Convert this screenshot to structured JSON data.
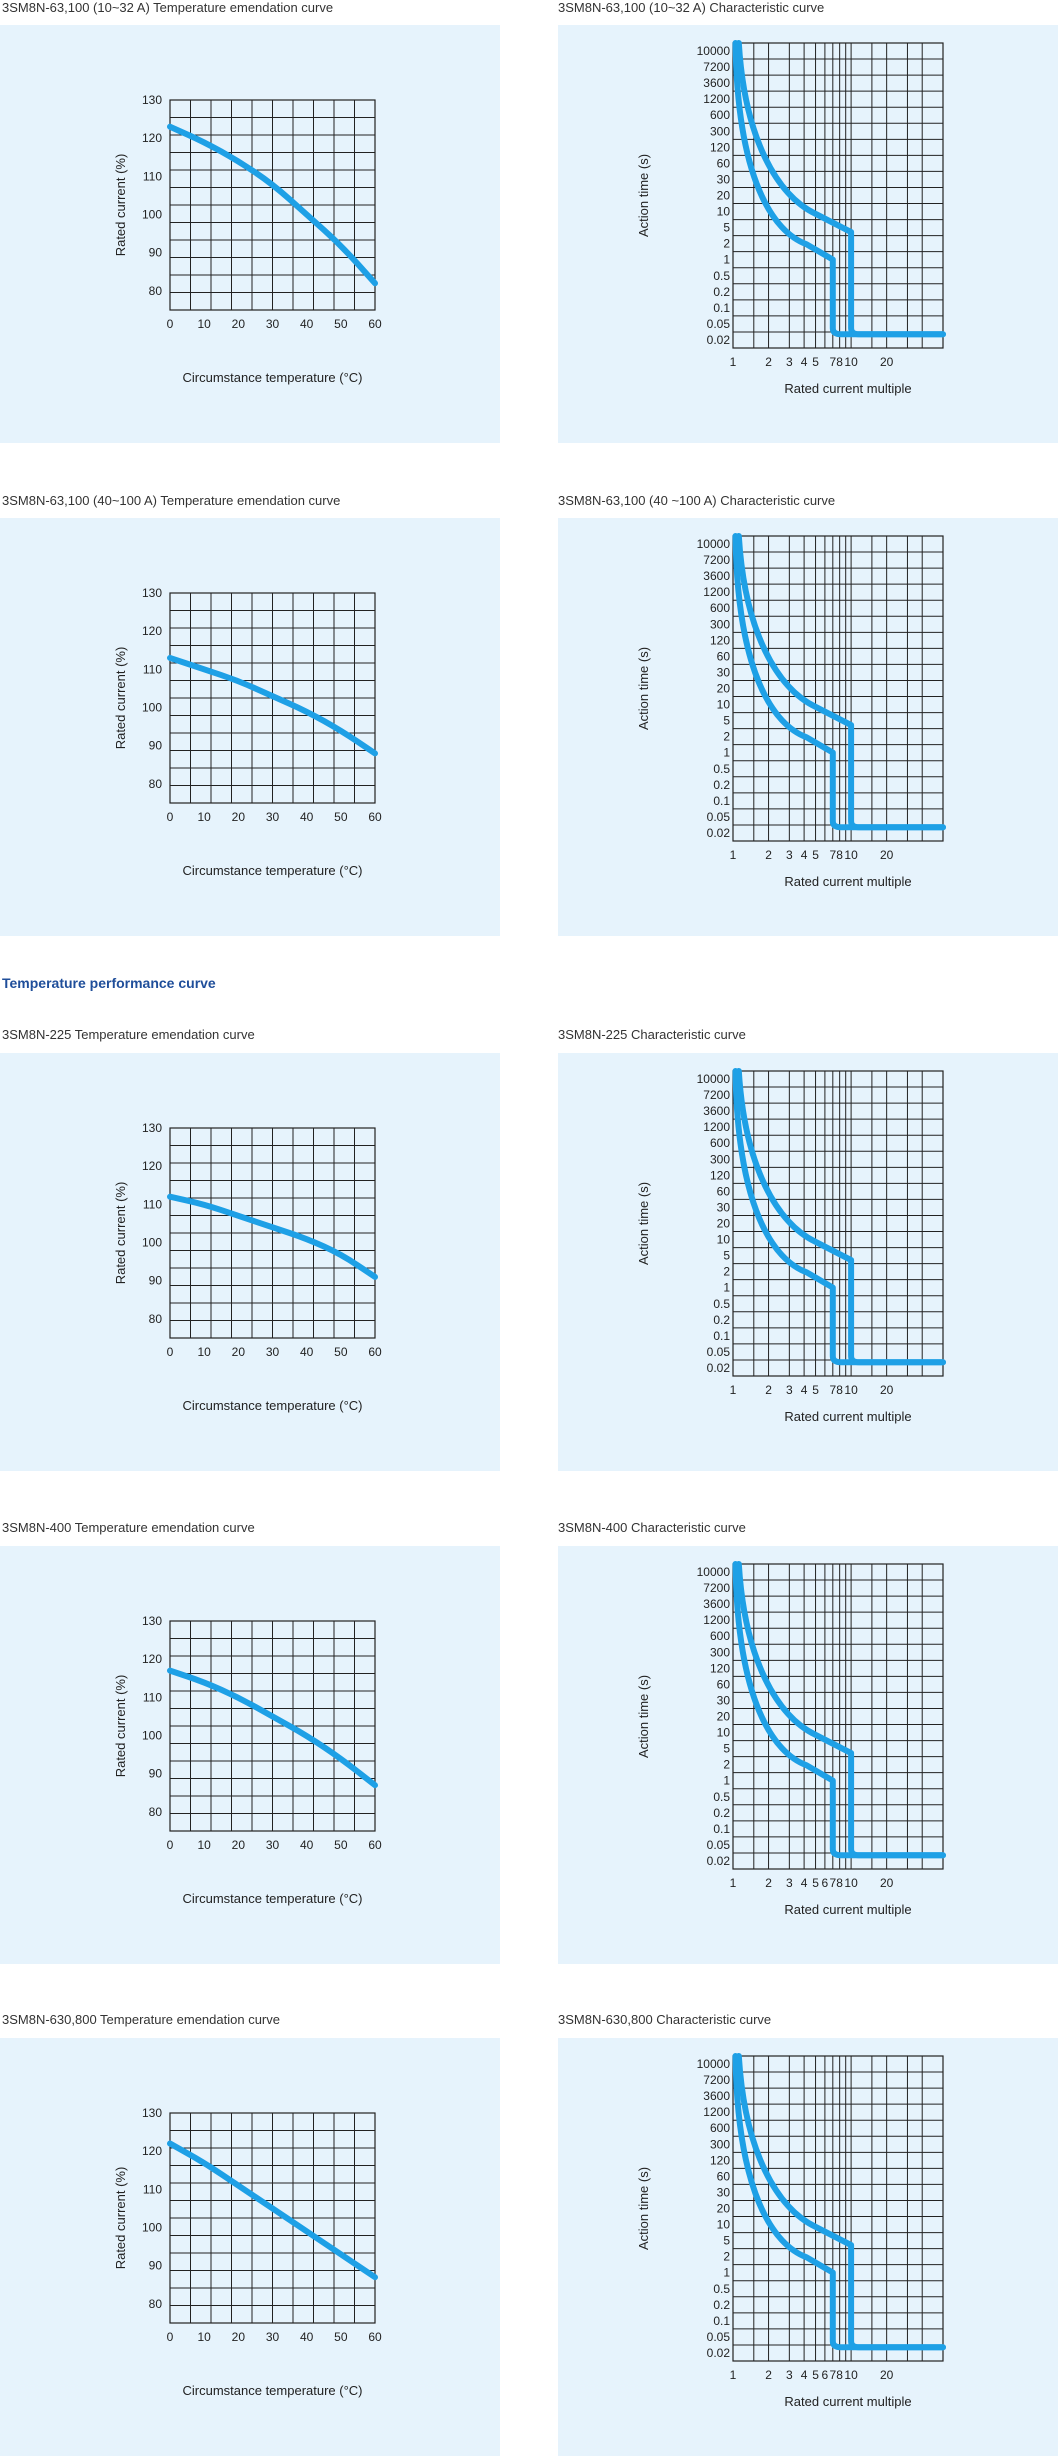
{
  "section_title": "Temperature performance curve",
  "charts": [
    {
      "id": "c1",
      "title": "3SM8N-63,100 (10~32 A) Temperature emendation curve",
      "type": "line",
      "kind": "temp",
      "xlabel": "Circumstance temperature (°C)",
      "ylabel": "Rated current (%)",
      "x_ticks": [
        "0",
        "10",
        "20",
        "30",
        "40",
        "50",
        "60"
      ],
      "y_ticks": [
        "80",
        "90",
        "100",
        "110",
        "120",
        "130"
      ],
      "xlim": [
        0,
        60
      ],
      "ylim": [
        75,
        130
      ],
      "series": [
        {
          "name": "Rated current",
          "x": [
            0,
            10,
            20,
            30,
            40,
            50,
            60
          ],
          "y": [
            123,
            119,
            114,
            108,
            100,
            92,
            82
          ]
        }
      ]
    },
    {
      "id": "c2",
      "title": "3SM8N-63,100 (10~32 A)  Characteristic curve",
      "type": "line",
      "kind": "trip",
      "xlabel": "Rated current multiple",
      "ylabel": "Action time (s)",
      "x_ticks": [
        "1",
        "2",
        "3",
        "4",
        "5",
        "7",
        "8",
        "10",
        "20"
      ],
      "y_ticks": [
        "10000",
        "7200",
        "3600",
        "1200",
        "600",
        "300",
        "120",
        "60",
        "30",
        "20",
        "10",
        "5",
        "2",
        "1",
        "0.5",
        "0.2",
        "0.1",
        "0.05",
        "0.02"
      ],
      "low_step": 7,
      "high_step": 10
    },
    {
      "id": "c3",
      "title": "3SM8N-63,100 (40~100 A) Temperature emendation curve",
      "type": "line",
      "kind": "temp",
      "xlabel": "Circumstance temperature (°C)",
      "ylabel": "Rated current (%)",
      "x_ticks": [
        "0",
        "10",
        "20",
        "30",
        "40",
        "50",
        "60"
      ],
      "y_ticks": [
        "80",
        "90",
        "100",
        "110",
        "120",
        "130"
      ],
      "xlim": [
        0,
        60
      ],
      "ylim": [
        75,
        130
      ],
      "series": [
        {
          "name": "Rated current",
          "x": [
            0,
            10,
            20,
            30,
            40,
            50,
            60
          ],
          "y": [
            113,
            110,
            107,
            103,
            99,
            94,
            88
          ]
        }
      ]
    },
    {
      "id": "c4",
      "title": "3SM8N-63,100 (40 ~100 A)  Characteristic curve",
      "type": "line",
      "kind": "trip",
      "xlabel": "Rated current multiple",
      "ylabel": "Action time (s)",
      "x_ticks": [
        "1",
        "2",
        "3",
        "4",
        "5",
        "7",
        "8",
        "10",
        "20"
      ],
      "y_ticks": [
        "10000",
        "7200",
        "3600",
        "1200",
        "600",
        "300",
        "120",
        "60",
        "30",
        "20",
        "10",
        "5",
        "2",
        "1",
        "0.5",
        "0.2",
        "0.1",
        "0.05",
        "0.02"
      ],
      "low_step": 7,
      "high_step": 10
    },
    {
      "id": "c5",
      "title": "3SM8N-225 Temperature emendation curve",
      "type": "line",
      "kind": "temp",
      "xlabel": "Circumstance temperature (°C)",
      "ylabel": "Rated current (%)",
      "x_ticks": [
        "0",
        "10",
        "20",
        "30",
        "40",
        "50",
        "60"
      ],
      "y_ticks": [
        "80",
        "90",
        "100",
        "110",
        "120",
        "130"
      ],
      "xlim": [
        0,
        60
      ],
      "ylim": [
        75,
        130
      ],
      "series": [
        {
          "name": "Rated current",
          "x": [
            0,
            10,
            20,
            30,
            40,
            50,
            60
          ],
          "y": [
            112,
            110,
            107,
            104,
            101,
            97,
            91
          ]
        }
      ]
    },
    {
      "id": "c6",
      "title": "3SM8N-225 Characteristic curve",
      "type": "line",
      "kind": "trip",
      "xlabel": "Rated current multiple",
      "ylabel": "Action time (s)",
      "x_ticks": [
        "1",
        "2",
        "3",
        "4",
        "5",
        "7",
        "8",
        "10",
        "20"
      ],
      "y_ticks": [
        "10000",
        "7200",
        "3600",
        "1200",
        "600",
        "300",
        "120",
        "60",
        "30",
        "20",
        "10",
        "5",
        "2",
        "1",
        "0.5",
        "0.2",
        "0.1",
        "0.05",
        "0.02"
      ],
      "low_step": 7,
      "high_step": 10
    },
    {
      "id": "c7",
      "title": "3SM8N-400 Temperature emendation curve",
      "type": "line",
      "kind": "temp",
      "xlabel": "Circumstance temperature (°C)",
      "ylabel": "Rated current (%)",
      "x_ticks": [
        "0",
        "10",
        "20",
        "30",
        "40",
        "50",
        "60"
      ],
      "y_ticks": [
        "80",
        "90",
        "100",
        "110",
        "120",
        "130"
      ],
      "xlim": [
        0,
        60
      ],
      "ylim": [
        75,
        130
      ],
      "series": [
        {
          "name": "Rated current",
          "x": [
            0,
            10,
            20,
            30,
            40,
            50,
            60
          ],
          "y": [
            117,
            114,
            110,
            105,
            100,
            94,
            87
          ]
        }
      ]
    },
    {
      "id": "c8",
      "title": "3SM8N-400 Characteristic curve",
      "type": "line",
      "kind": "trip",
      "xlabel": "Rated current multiple",
      "ylabel": "Action time (s)",
      "x_ticks": [
        "1",
        "2",
        "3",
        "4",
        "5",
        "6",
        "7",
        "8",
        "10",
        "20"
      ],
      "y_ticks": [
        "10000",
        "7200",
        "3600",
        "1200",
        "600",
        "300",
        "120",
        "60",
        "30",
        "20",
        "10",
        "5",
        "2",
        "1",
        "0.5",
        "0.2",
        "0.1",
        "0.05",
        "0.02"
      ],
      "low_step": 7,
      "high_step": 10
    },
    {
      "id": "c9",
      "title": "3SM8N-630,800 Temperature emendation curve",
      "type": "line",
      "kind": "temp",
      "xlabel": "Circumstance temperature (°C)",
      "ylabel": "Rated current (%)",
      "x_ticks": [
        "0",
        "10",
        "20",
        "30",
        "40",
        "50",
        "60"
      ],
      "y_ticks": [
        "80",
        "90",
        "100",
        "110",
        "120",
        "130"
      ],
      "xlim": [
        0,
        60
      ],
      "ylim": [
        75,
        130
      ],
      "series": [
        {
          "name": "Rated current",
          "x": [
            0,
            10,
            20,
            30,
            40,
            50,
            60
          ],
          "y": [
            122,
            117,
            111,
            105,
            99,
            93,
            87
          ]
        }
      ]
    },
    {
      "id": "c10",
      "title": "3SM8N-630,800 Characteristic curve",
      "type": "line",
      "kind": "trip",
      "xlabel": "Rated current multiple",
      "ylabel": "Action time (s)",
      "x_ticks": [
        "1",
        "2",
        "3",
        "4",
        "5",
        "6",
        "7",
        "8",
        "10",
        "20"
      ],
      "y_ticks": [
        "10000",
        "7200",
        "3600",
        "1200",
        "600",
        "300",
        "120",
        "60",
        "30",
        "20",
        "10",
        "5",
        "2",
        "1",
        "0.5",
        "0.2",
        "0.1",
        "0.05",
        "0.02"
      ],
      "low_step": 7,
      "high_step": 10
    }
  ],
  "chart_data": [
    {
      "type": "line",
      "title": "3SM8N-63,100 (10~32 A) Temperature emendation curve",
      "xlabel": "Circumstance temperature (°C)",
      "ylabel": "Rated current (%)",
      "xlim": [
        0,
        60
      ],
      "ylim": [
        75,
        130
      ],
      "x": [
        0,
        10,
        20,
        30,
        40,
        50,
        60
      ],
      "y": [
        123,
        119,
        114,
        108,
        100,
        92,
        82
      ]
    },
    {
      "type": "line",
      "title": "3SM8N-63,100 (10~32 A)  Characteristic curve",
      "xlabel": "Rated current multiple",
      "ylabel": "Action time (s)",
      "series": [
        {
          "name": "lower trip curve",
          "step_at": 7
        },
        {
          "name": "upper trip curve",
          "step_at": 10
        }
      ]
    },
    {
      "type": "line",
      "title": "3SM8N-63,100 (40~100 A) Temperature emendation curve",
      "xlabel": "Circumstance temperature (°C)",
      "ylabel": "Rated current (%)",
      "xlim": [
        0,
        60
      ],
      "ylim": [
        75,
        130
      ],
      "x": [
        0,
        10,
        20,
        30,
        40,
        50,
        60
      ],
      "y": [
        113,
        110,
        107,
        103,
        99,
        94,
        88
      ]
    },
    {
      "type": "line",
      "title": "3SM8N-63,100 (40 ~100 A)  Characteristic curve",
      "xlabel": "Rated current multiple",
      "ylabel": "Action time (s)",
      "series": [
        {
          "name": "lower trip curve",
          "step_at": 7
        },
        {
          "name": "upper trip curve",
          "step_at": 10
        }
      ]
    },
    {
      "type": "line",
      "title": "3SM8N-225 Temperature emendation curve",
      "xlabel": "Circumstance temperature (°C)",
      "ylabel": "Rated current (%)",
      "xlim": [
        0,
        60
      ],
      "ylim": [
        75,
        130
      ],
      "x": [
        0,
        10,
        20,
        30,
        40,
        50,
        60
      ],
      "y": [
        112,
        110,
        107,
        104,
        101,
        97,
        91
      ]
    },
    {
      "type": "line",
      "title": "3SM8N-225 Characteristic curve",
      "xlabel": "Rated current multiple",
      "ylabel": "Action time (s)",
      "series": [
        {
          "name": "lower trip curve",
          "step_at": 7
        },
        {
          "name": "upper trip curve",
          "step_at": 10
        }
      ]
    },
    {
      "type": "line",
      "title": "3SM8N-400 Temperature emendation curve",
      "xlabel": "Circumstance temperature (°C)",
      "ylabel": "Rated current (%)",
      "xlim": [
        0,
        60
      ],
      "ylim": [
        75,
        130
      ],
      "x": [
        0,
        10,
        20,
        30,
        40,
        50,
        60
      ],
      "y": [
        117,
        114,
        110,
        105,
        100,
        94,
        87
      ]
    },
    {
      "type": "line",
      "title": "3SM8N-400 Characteristic curve",
      "xlabel": "Rated current multiple",
      "ylabel": "Action time (s)",
      "series": [
        {
          "name": "lower trip curve",
          "step_at": 7
        },
        {
          "name": "upper trip curve",
          "step_at": 10
        }
      ]
    },
    {
      "type": "line",
      "title": "3SM8N-630,800 Temperature emendation curve",
      "xlabel": "Circumstance temperature (°C)",
      "ylabel": "Rated current (%)",
      "xlim": [
        0,
        60
      ],
      "ylim": [
        75,
        130
      ],
      "x": [
        0,
        10,
        20,
        30,
        40,
        50,
        60
      ],
      "y": [
        122,
        117,
        111,
        105,
        99,
        93,
        87
      ]
    },
    {
      "type": "line",
      "title": "3SM8N-630,800 Characteristic curve",
      "xlabel": "Rated current multiple",
      "ylabel": "Action time (s)",
      "series": [
        {
          "name": "lower trip curve",
          "step_at": 7
        },
        {
          "name": "upper trip curve",
          "step_at": 10
        }
      ]
    }
  ]
}
